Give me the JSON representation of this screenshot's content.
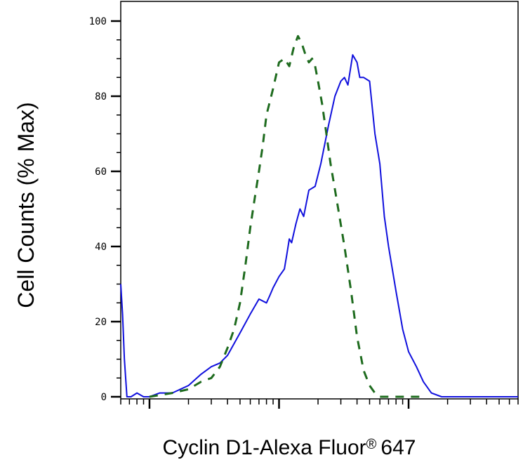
{
  "chart_data": {
    "type": "line",
    "title": "",
    "xlabel": "Cyclin D1-Alexa Fluor",
    "xlabel_mark": "®",
    "xlabel_suffix": "647",
    "ylabel": "Cell Counts (% Max)",
    "xscale": "log",
    "xlim": [
      0.6,
      700
    ],
    "ylim": [
      0,
      100
    ],
    "y_ticks": [
      0,
      20,
      40,
      60,
      80,
      100
    ],
    "y_tick_labels": [
      "0",
      "20",
      "40",
      "60",
      "80",
      "100"
    ],
    "grid": false,
    "legend": "none",
    "series": [
      {
        "line_style": "solid",
        "color": "#1010dd",
        "x": [
          0.6,
          0.62,
          0.64,
          0.67,
          0.72,
          0.8,
          0.9,
          1.0,
          1.2,
          1.5,
          2.0,
          2.5,
          3.0,
          3.5,
          4.0,
          5.0,
          6.0,
          7.0,
          8.0,
          8.5,
          9.0,
          10.0,
          11.0,
          11.5,
          12.0,
          12.5,
          13.5,
          14.5,
          15.5,
          17.0,
          19.0,
          21.0,
          24.0,
          27.0,
          30.0,
          32.0,
          34.0,
          35.5,
          37.0,
          38.5,
          40.0,
          42.0,
          45.0,
          50.0,
          55.0,
          60.0,
          65.0,
          70.0,
          80.0,
          90.0,
          100.0,
          115.0,
          130.0,
          150.0,
          180.0,
          220.0,
          300.0,
          400.0,
          550.0,
          700.0
        ],
        "y": [
          30,
          22,
          10,
          0,
          0,
          1,
          0,
          0,
          1,
          1,
          3,
          6,
          8,
          9,
          11,
          17,
          22,
          26,
          25,
          27,
          29,
          32,
          34,
          38,
          42,
          41,
          46,
          50,
          48,
          55,
          56,
          62,
          72,
          80,
          84,
          85,
          83,
          87,
          91,
          90,
          89,
          85,
          85,
          84,
          70,
          62,
          48,
          40,
          28,
          18,
          12,
          8,
          4,
          1,
          0,
          0,
          0,
          0,
          0,
          0
        ]
      },
      {
        "line_style": "dashed",
        "color": "#1e6b1e",
        "x": [
          1.0,
          1.5,
          2.0,
          2.5,
          3.0,
          3.5,
          4.0,
          4.5,
          5.0,
          5.5,
          6.0,
          6.5,
          7.0,
          7.5,
          8.0,
          9.0,
          10.0,
          11.0,
          12.0,
          13.0,
          14.0,
          15.0,
          16.0,
          17.0,
          18.0,
          19.0,
          20.0,
          21.5,
          23.0,
          25.0,
          28.0,
          32.0,
          36.0,
          40.0,
          45.0,
          50.0,
          55.0,
          60.0,
          70.0,
          80.0,
          100.0,
          130.0
        ],
        "y": [
          0,
          1,
          2,
          4,
          5,
          8,
          13,
          18,
          25,
          35,
          45,
          53,
          60,
          67,
          75,
          82,
          89,
          90,
          88,
          93,
          96,
          94,
          91,
          89,
          90,
          88,
          84,
          78,
          71,
          62,
          52,
          40,
          28,
          16,
          7,
          3,
          1,
          0,
          0,
          0,
          0,
          0
        ]
      }
    ]
  }
}
